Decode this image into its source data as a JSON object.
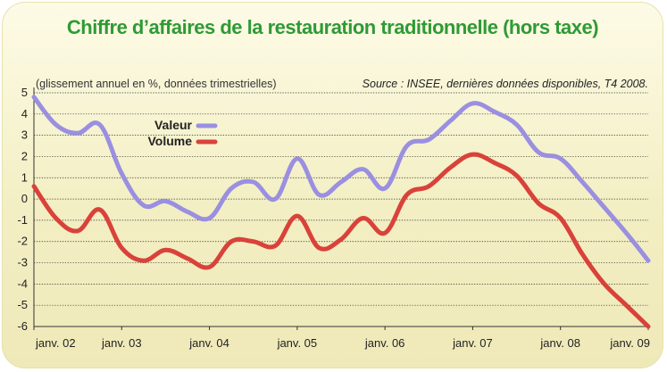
{
  "title": "Chiffre d’affaires de la restauration traditionnelle (hors taxe)",
  "note": "(glissement annuel en %, données trimestrielles)",
  "source": "Source : INSEE, dernières données disponibles, T4 2008.",
  "colors": {
    "title": "#2f9a36",
    "valeur": "#9a8fe0",
    "volume": "#d9423a",
    "grid": "#2a2a2a",
    "background": "#f6f2cc"
  },
  "chart_data": {
    "type": "line",
    "xlabel": "",
    "ylabel": "",
    "ylim": [
      -6,
      5
    ],
    "yticks": [
      "5",
      "4",
      "3",
      "2",
      "1",
      "0",
      "-1",
      "-2",
      "-3",
      "-4",
      "-5",
      "-6"
    ],
    "x_tick_labels": [
      "janv. 02",
      "janv. 03",
      "janv. 04",
      "janv. 05",
      "janv. 06",
      "janv. 07",
      "janv. 08",
      "janv. 09"
    ],
    "grid": true,
    "legend_placement": "top-left",
    "x": [
      2002.0,
      2002.25,
      2002.5,
      2002.75,
      2003.0,
      2003.25,
      2003.5,
      2003.75,
      2004.0,
      2004.25,
      2004.5,
      2004.75,
      2005.0,
      2005.25,
      2005.5,
      2005.75,
      2006.0,
      2006.25,
      2006.5,
      2006.75,
      2007.0,
      2007.25,
      2007.5,
      2007.75,
      2008.0,
      2008.25,
      2008.5,
      2008.75,
      2009.0
    ],
    "series": [
      {
        "name": "Valeur",
        "values": [
          4.8,
          3.5,
          3.1,
          3.5,
          1.2,
          -0.3,
          -0.1,
          -0.6,
          -0.9,
          0.5,
          0.8,
          0.0,
          1.9,
          0.2,
          0.8,
          1.4,
          0.5,
          2.5,
          2.8,
          3.7,
          4.5,
          4.1,
          3.5,
          2.2,
          1.9,
          0.8,
          -0.4,
          -1.6,
          -2.9
        ]
      },
      {
        "name": "Volume",
        "values": [
          0.6,
          -0.9,
          -1.5,
          -0.5,
          -2.3,
          -2.9,
          -2.4,
          -2.8,
          -3.2,
          -2.0,
          -2.0,
          -2.2,
          -0.8,
          -2.3,
          -1.9,
          -0.9,
          -1.6,
          0.2,
          0.6,
          1.5,
          2.1,
          1.7,
          1.1,
          -0.2,
          -0.9,
          -2.6,
          -4.0,
          -5.0,
          -6.0
        ]
      }
    ]
  }
}
